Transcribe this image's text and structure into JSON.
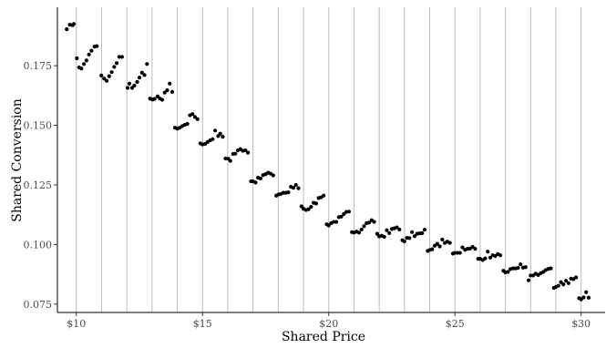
{
  "chart_data": {
    "type": "scatter",
    "title": "",
    "xlabel": "Shared Price",
    "ylabel": "Shared Conversion",
    "xlim": [
      9.25,
      30.95
    ],
    "ylim": [
      0.0715,
      0.1995
    ],
    "x_ticks": [
      10,
      15,
      20,
      25,
      30
    ],
    "x_tick_labels": [
      "$10",
      "$15",
      "$20",
      "$25",
      "$30"
    ],
    "y_ticks": [
      0.075,
      0.1,
      0.125,
      0.15,
      0.175
    ],
    "y_tick_labels": [
      "0.075",
      "0.100",
      "0.125",
      "0.150",
      "0.175"
    ],
    "vertical_grid_x": [
      10,
      11,
      12,
      13,
      14,
      15,
      16,
      17,
      18,
      19,
      20,
      21,
      22,
      23,
      24,
      25,
      26,
      27,
      28,
      29,
      30
    ],
    "grid": "vertical lines at each whole dollar",
    "legend": "none",
    "point_color": "#000000",
    "grid_color": "#bdbdbd",
    "points": [
      [
        9.62,
        0.1903
      ],
      [
        9.74,
        0.1922
      ],
      [
        9.85,
        0.192
      ],
      [
        9.9,
        0.1925
      ],
      [
        10.02,
        0.1781
      ],
      [
        10.11,
        0.1743
      ],
      [
        10.2,
        0.1738
      ],
      [
        10.3,
        0.1757
      ],
      [
        10.4,
        0.1772
      ],
      [
        10.5,
        0.1797
      ],
      [
        10.6,
        0.1813
      ],
      [
        10.72,
        0.183
      ],
      [
        10.81,
        0.1832
      ],
      [
        10.99,
        0.1709
      ],
      [
        11.1,
        0.1696
      ],
      [
        11.2,
        0.1687
      ],
      [
        11.3,
        0.1706
      ],
      [
        11.4,
        0.1723
      ],
      [
        11.5,
        0.1745
      ],
      [
        11.6,
        0.1761
      ],
      [
        11.7,
        0.1787
      ],
      [
        11.81,
        0.1787
      ],
      [
        12.03,
        0.1657
      ],
      [
        12.1,
        0.1675
      ],
      [
        12.21,
        0.1657
      ],
      [
        12.3,
        0.1667
      ],
      [
        12.41,
        0.1682
      ],
      [
        12.5,
        0.17
      ],
      [
        12.6,
        0.1721
      ],
      [
        12.7,
        0.1711
      ],
      [
        12.8,
        0.1757
      ],
      [
        12.92,
        0.1612
      ],
      [
        13.02,
        0.1608
      ],
      [
        13.1,
        0.1611
      ],
      [
        13.22,
        0.1621
      ],
      [
        13.31,
        0.1612
      ],
      [
        13.4,
        0.1607
      ],
      [
        13.5,
        0.1637
      ],
      [
        13.6,
        0.1647
      ],
      [
        13.7,
        0.1675
      ],
      [
        13.8,
        0.164
      ],
      [
        13.91,
        0.149
      ],
      [
        14.0,
        0.1486
      ],
      [
        14.1,
        0.149
      ],
      [
        14.2,
        0.1497
      ],
      [
        14.3,
        0.1502
      ],
      [
        14.4,
        0.1506
      ],
      [
        14.5,
        0.1542
      ],
      [
        14.6,
        0.1547
      ],
      [
        14.7,
        0.1535
      ],
      [
        14.8,
        0.1526
      ],
      [
        14.91,
        0.1424
      ],
      [
        15.0,
        0.142
      ],
      [
        15.1,
        0.1422
      ],
      [
        15.2,
        0.143
      ],
      [
        15.3,
        0.1437
      ],
      [
        15.4,
        0.1442
      ],
      [
        15.5,
        0.1478
      ],
      [
        15.62,
        0.1455
      ],
      [
        15.7,
        0.1465
      ],
      [
        15.8,
        0.1452
      ],
      [
        15.91,
        0.1361
      ],
      [
        16.02,
        0.136
      ],
      [
        16.1,
        0.1351
      ],
      [
        16.21,
        0.138
      ],
      [
        16.3,
        0.1381
      ],
      [
        16.4,
        0.1395
      ],
      [
        16.5,
        0.14
      ],
      [
        16.6,
        0.1393
      ],
      [
        16.7,
        0.1395
      ],
      [
        16.8,
        0.1385
      ],
      [
        16.92,
        0.1265
      ],
      [
        17.0,
        0.1265
      ],
      [
        17.1,
        0.126
      ],
      [
        17.2,
        0.128
      ],
      [
        17.3,
        0.1277
      ],
      [
        17.4,
        0.1291
      ],
      [
        17.5,
        0.1295
      ],
      [
        17.6,
        0.1301
      ],
      [
        17.7,
        0.1297
      ],
      [
        17.8,
        0.129
      ],
      [
        17.92,
        0.1205
      ],
      [
        18.01,
        0.121
      ],
      [
        18.1,
        0.1212
      ],
      [
        18.2,
        0.1217
      ],
      [
        18.3,
        0.1217
      ],
      [
        18.4,
        0.1219
      ],
      [
        18.5,
        0.1242
      ],
      [
        18.6,
        0.1238
      ],
      [
        18.7,
        0.125
      ],
      [
        18.8,
        0.1236
      ],
      [
        18.92,
        0.116
      ],
      [
        19.0,
        0.115
      ],
      [
        19.1,
        0.1145
      ],
      [
        19.2,
        0.1148
      ],
      [
        19.3,
        0.1158
      ],
      [
        19.4,
        0.1175
      ],
      [
        19.5,
        0.1172
      ],
      [
        19.6,
        0.1195
      ],
      [
        19.7,
        0.1198
      ],
      [
        19.8,
        0.1205
      ],
      [
        19.92,
        0.1085
      ],
      [
        20.0,
        0.108
      ],
      [
        20.1,
        0.109
      ],
      [
        20.2,
        0.1095
      ],
      [
        20.3,
        0.1095
      ],
      [
        20.4,
        0.1115
      ],
      [
        20.5,
        0.1117
      ],
      [
        20.6,
        0.1128
      ],
      [
        20.7,
        0.1137
      ],
      [
        20.8,
        0.1138
      ],
      [
        20.92,
        0.1052
      ],
      [
        21.0,
        0.105
      ],
      [
        21.1,
        0.1054
      ],
      [
        21.2,
        0.105
      ],
      [
        21.3,
        0.1063
      ],
      [
        21.4,
        0.1077
      ],
      [
        21.5,
        0.109
      ],
      [
        21.6,
        0.1092
      ],
      [
        21.7,
        0.1102
      ],
      [
        21.8,
        0.1095
      ],
      [
        21.92,
        0.1045
      ],
      [
        22.0,
        0.1034
      ],
      [
        22.1,
        0.1037
      ],
      [
        22.2,
        0.1032
      ],
      [
        22.3,
        0.106
      ],
      [
        22.4,
        0.1048
      ],
      [
        22.5,
        0.1065
      ],
      [
        22.6,
        0.1068
      ],
      [
        22.7,
        0.1072
      ],
      [
        22.8,
        0.1063
      ],
      [
        22.92,
        0.1018
      ],
      [
        23.0,
        0.1013
      ],
      [
        23.1,
        0.1028
      ],
      [
        23.2,
        0.1027
      ],
      [
        23.3,
        0.1052
      ],
      [
        23.4,
        0.1035
      ],
      [
        23.5,
        0.1045
      ],
      [
        23.6,
        0.1047
      ],
      [
        23.7,
        0.1048
      ],
      [
        23.8,
        0.1062
      ],
      [
        23.92,
        0.0973
      ],
      [
        24.0,
        0.0977
      ],
      [
        24.1,
        0.098
      ],
      [
        24.2,
        0.0995
      ],
      [
        24.3,
        0.1003
      ],
      [
        24.4,
        0.0992
      ],
      [
        24.5,
        0.1021
      ],
      [
        24.6,
        0.1007
      ],
      [
        24.7,
        0.1012
      ],
      [
        24.8,
        0.1007
      ],
      [
        24.92,
        0.0962
      ],
      [
        25.0,
        0.0965
      ],
      [
        25.1,
        0.0965
      ],
      [
        25.2,
        0.0965
      ],
      [
        25.3,
        0.0988
      ],
      [
        25.4,
        0.0978
      ],
      [
        25.5,
        0.0982
      ],
      [
        25.6,
        0.0983
      ],
      [
        25.7,
        0.099
      ],
      [
        25.8,
        0.0982
      ],
      [
        25.92,
        0.094
      ],
      [
        26.0,
        0.094
      ],
      [
        26.1,
        0.0935
      ],
      [
        26.2,
        0.0942
      ],
      [
        26.3,
        0.097
      ],
      [
        26.4,
        0.0945
      ],
      [
        26.5,
        0.0955
      ],
      [
        26.6,
        0.0952
      ],
      [
        26.7,
        0.096
      ],
      [
        26.8,
        0.0955
      ],
      [
        26.92,
        0.089
      ],
      [
        27.0,
        0.0883
      ],
      [
        27.1,
        0.0885
      ],
      [
        27.2,
        0.0897
      ],
      [
        27.3,
        0.09
      ],
      [
        27.4,
        0.09
      ],
      [
        27.5,
        0.0902
      ],
      [
        27.6,
        0.0917
      ],
      [
        27.7,
        0.0903
      ],
      [
        27.8,
        0.0905
      ],
      [
        27.92,
        0.085
      ],
      [
        28.0,
        0.087
      ],
      [
        28.1,
        0.087
      ],
      [
        28.2,
        0.0878
      ],
      [
        28.3,
        0.0872
      ],
      [
        28.4,
        0.088
      ],
      [
        28.5,
        0.0885
      ],
      [
        28.6,
        0.0893
      ],
      [
        28.7,
        0.0898
      ],
      [
        28.8,
        0.09
      ],
      [
        28.92,
        0.0818
      ],
      [
        29.0,
        0.0822
      ],
      [
        29.1,
        0.0827
      ],
      [
        29.2,
        0.0842
      ],
      [
        29.3,
        0.0833
      ],
      [
        29.4,
        0.0848
      ],
      [
        29.5,
        0.0838
      ],
      [
        29.6,
        0.0857
      ],
      [
        29.7,
        0.0855
      ],
      [
        29.8,
        0.0862
      ],
      [
        29.92,
        0.0775
      ],
      [
        30.0,
        0.077
      ],
      [
        30.1,
        0.0778
      ],
      [
        30.2,
        0.08
      ],
      [
        30.3,
        0.0777
      ]
    ]
  }
}
